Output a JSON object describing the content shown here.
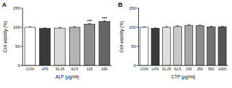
{
  "chart_data": [
    {
      "type": "bar",
      "title": "A",
      "x_label": "ALP (μg/ml)",
      "y_label": "Cell viability (%)",
      "categories": [
        "CON",
        "LPS",
        "31.25",
        "62.5",
        "125",
        "250"
      ],
      "values": [
        100,
        97,
        98,
        100,
        108,
        115
      ],
      "errors": [
        1.5,
        1.5,
        2,
        2,
        2,
        2
      ],
      "colors": [
        "#ffffff",
        "#3a3a3a",
        "#d9d9d9",
        "#b3b3b3",
        "#8c8c8c",
        "#666666"
      ],
      "annotations": [
        null,
        null,
        null,
        null,
        "***",
        "***"
      ],
      "ylim": [
        0,
        150
      ],
      "yticks": [
        0,
        50,
        100,
        150
      ],
      "grid": false
    },
    {
      "type": "bar",
      "title": "B",
      "x_label": "CTP (μg/ml)",
      "y_label": "Cell viability (%)",
      "categories": [
        "CON",
        "LPS",
        "31.25",
        "62.5",
        "125",
        "250",
        "500",
        "1000"
      ],
      "values": [
        100,
        97,
        100,
        102,
        105,
        104,
        101,
        101
      ],
      "errors": [
        1.5,
        1.5,
        2,
        2,
        2,
        2,
        2,
        2
      ],
      "colors": [
        "#ffffff",
        "#3a3a3a",
        "#e0e0e0",
        "#c8c8c8",
        "#a8a8a8",
        "#8c8c8c",
        "#707070",
        "#555555"
      ],
      "ylim": [
        0,
        150
      ],
      "yticks": [
        0,
        50,
        100,
        150
      ],
      "grid": false
    }
  ]
}
